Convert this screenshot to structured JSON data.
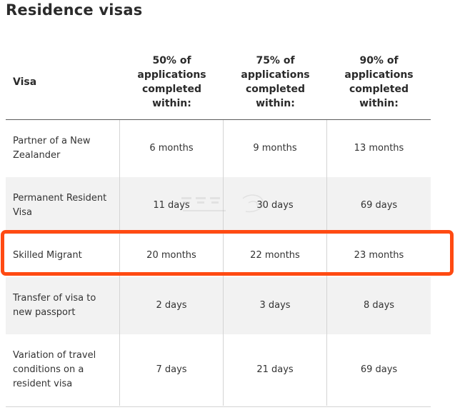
{
  "title": "Residence visas",
  "table": {
    "headers": [
      "Visa",
      "50% of applications completed within:",
      "75% of applications completed within:",
      "90% of applications completed within:"
    ],
    "rows": [
      {
        "visa": "Partner of a New Zealander",
        "p50": "6 months",
        "p75": "9 months",
        "p90": "13 months"
      },
      {
        "visa": "Permanent Resident Visa",
        "p50": "11 days",
        "p75": "30 days",
        "p90": "69 days"
      },
      {
        "visa": "Skilled Migrant",
        "p50": "20 months",
        "p75": "22 months",
        "p90": "23 months"
      },
      {
        "visa": "Transfer of visa to new passport",
        "p50": "2 days",
        "p75": "3 days",
        "p90": "8 days"
      },
      {
        "visa": "Variation of travel conditions on a resident visa",
        "p50": "7 days",
        "p75": "21 days",
        "p90": "69 days"
      }
    ]
  },
  "highlight": {
    "row": "Skilled Migrant",
    "color": "#ff4a12"
  },
  "colors": {
    "shaded_row": "#f2f2f2",
    "header_rule": "#5c5c5c",
    "grid": "#d4d4d4"
  }
}
